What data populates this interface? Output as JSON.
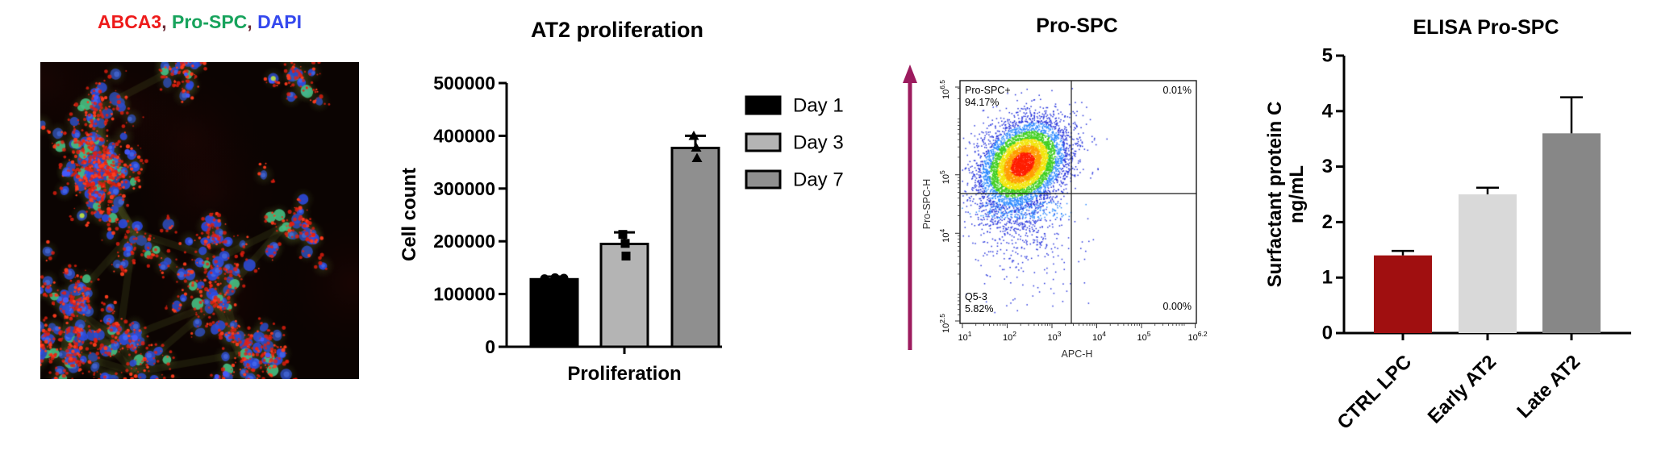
{
  "panel_micro": {
    "caption": [
      {
        "text": "ABCA3",
        "color": "#ee1b1b"
      },
      {
        "text": ", ",
        "color": "#6b2a35"
      },
      {
        "text": "Pro-SPC",
        "color": "#17a35c"
      },
      {
        "text": ", ",
        "color": "#6b2a35"
      },
      {
        "text": "DAPI",
        "color": "#3448ee"
      }
    ]
  },
  "chart_data": [
    {
      "id": "at2_proliferation",
      "type": "bar",
      "title": "AT2 proliferation",
      "xlabel": "Proliferation",
      "ylabel": "Cell count",
      "ylim": [
        0,
        500000
      ],
      "yticks": [
        0,
        100000,
        200000,
        300000,
        400000,
        500000
      ],
      "legend_position": "right",
      "series": [
        {
          "name": "Day 1",
          "value": 128000,
          "error_up": 5000,
          "color": "#000000",
          "marker": "circle",
          "points": [
            129000,
            131000,
            130000
          ]
        },
        {
          "name": "Day 3",
          "value": 195000,
          "error_up": 22000,
          "color": "#b4b4b4",
          "marker": "square",
          "points": [
            213000,
            196000,
            172000
          ]
        },
        {
          "name": "Day 7",
          "value": 377000,
          "error_up": 23000,
          "color": "#8f8f8f",
          "marker": "triangle",
          "points": [
            399000,
            377000,
            357000
          ]
        }
      ]
    },
    {
      "id": "flow_prospc",
      "type": "scatter",
      "title": "Pro-SPC",
      "title_color": "#5e2633",
      "xlabel": "APC-H",
      "ylabel": "Pro-SPC-H",
      "xticks": [
        "10^1",
        "10^2",
        "10^3",
        "10^4",
        "10^5",
        "10^6.2"
      ],
      "yticks": [
        "10^2.5",
        "10^4",
        "10^5",
        "10^6.5"
      ],
      "quadrants": {
        "top_left_name": "Pro-SPC+",
        "top_left_pct": "94.17%",
        "top_right_pct": "0.01%",
        "bottom_left_name": "Q5-3",
        "bottom_left_pct": "5.82%",
        "bottom_right_pct": "0.00%"
      },
      "population_center": {
        "x_log10": 2.3,
        "y_log10": 5.1
      },
      "arrow_color": "#9c1b5e"
    },
    {
      "id": "elisa_prospc",
      "type": "bar",
      "title": "ELISA Pro-SPC",
      "ylabel_line1": "Surfactant protein C",
      "ylabel_line2": "ng/mL",
      "ylim": [
        0,
        5
      ],
      "yticks": [
        0,
        1,
        2,
        3,
        4,
        5
      ],
      "categories": [
        "CTRL LPC",
        "Early AT2",
        "Late AT2"
      ],
      "values": [
        1.4,
        2.5,
        3.6
      ],
      "errors_up": [
        0.08,
        0.12,
        0.65
      ],
      "colors": [
        "#a00f10",
        "#d9d9d9",
        "#878787"
      ]
    }
  ]
}
